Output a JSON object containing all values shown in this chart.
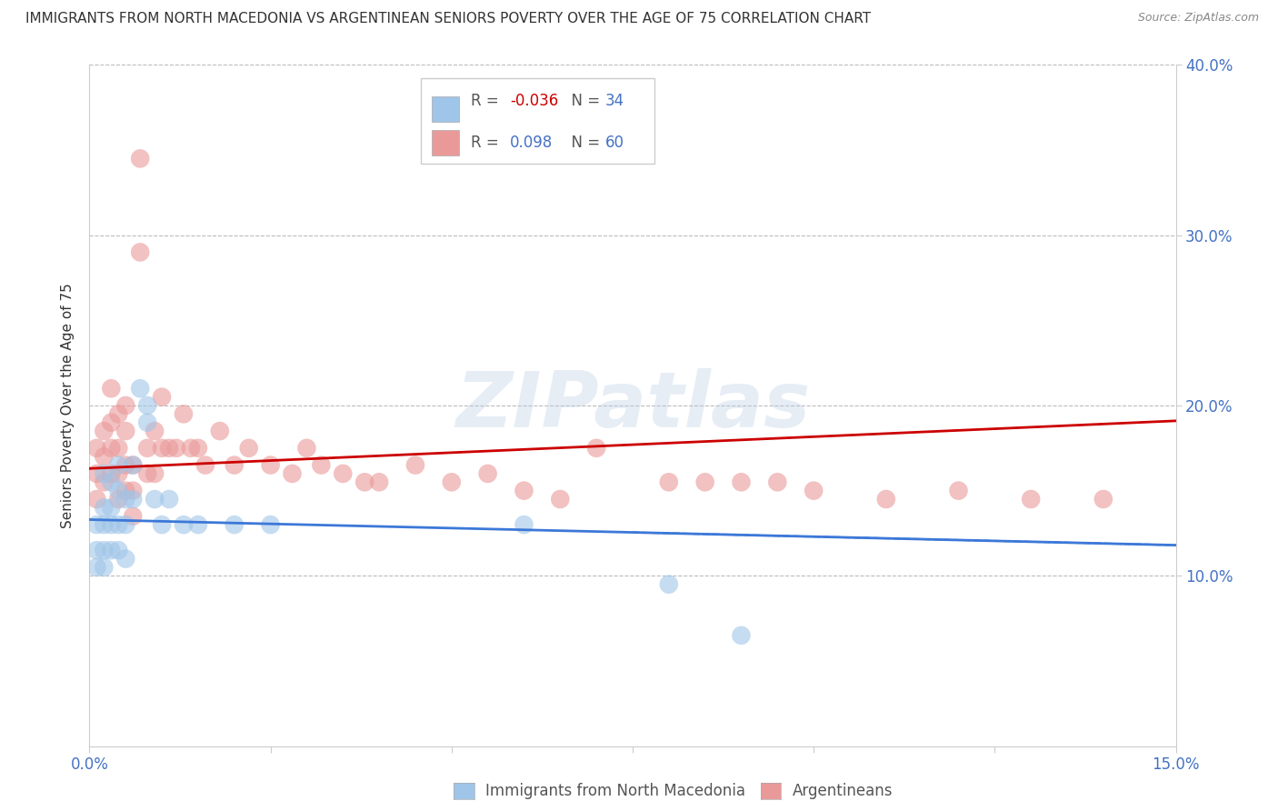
{
  "title": "IMMIGRANTS FROM NORTH MACEDONIA VS ARGENTINEAN SENIORS POVERTY OVER THE AGE OF 75 CORRELATION CHART",
  "source": "Source: ZipAtlas.com",
  "ylabel": "Seniors Poverty Over the Age of 75",
  "xlim": [
    0.0,
    0.15
  ],
  "ylim": [
    0.0,
    0.4
  ],
  "legend_r1": "-0.036",
  "legend_n1": "34",
  "legend_r2": "0.098",
  "legend_n2": "60",
  "blue_color": "#9fc5e8",
  "pink_color": "#ea9999",
  "blue_line_color": "#3c78d8",
  "pink_line_color": "#cc0000",
  "watermark_color": "#b8cce4",
  "blue_scatter_x": [
    0.001,
    0.001,
    0.001,
    0.002,
    0.002,
    0.002,
    0.002,
    0.002,
    0.003,
    0.003,
    0.003,
    0.003,
    0.004,
    0.004,
    0.004,
    0.004,
    0.005,
    0.005,
    0.005,
    0.006,
    0.006,
    0.007,
    0.008,
    0.008,
    0.009,
    0.01,
    0.011,
    0.013,
    0.015,
    0.02,
    0.025,
    0.06,
    0.08,
    0.09
  ],
  "blue_scatter_y": [
    0.13,
    0.115,
    0.105,
    0.16,
    0.14,
    0.13,
    0.115,
    0.105,
    0.155,
    0.14,
    0.13,
    0.115,
    0.165,
    0.15,
    0.13,
    0.115,
    0.145,
    0.13,
    0.11,
    0.165,
    0.145,
    0.21,
    0.2,
    0.19,
    0.145,
    0.13,
    0.145,
    0.13,
    0.13,
    0.13,
    0.13,
    0.13,
    0.095,
    0.065
  ],
  "pink_scatter_x": [
    0.001,
    0.001,
    0.001,
    0.002,
    0.002,
    0.002,
    0.003,
    0.003,
    0.003,
    0.003,
    0.004,
    0.004,
    0.004,
    0.004,
    0.005,
    0.005,
    0.005,
    0.005,
    0.006,
    0.006,
    0.006,
    0.007,
    0.007,
    0.008,
    0.008,
    0.009,
    0.009,
    0.01,
    0.01,
    0.011,
    0.012,
    0.013,
    0.014,
    0.015,
    0.016,
    0.018,
    0.02,
    0.022,
    0.025,
    0.028,
    0.03,
    0.032,
    0.035,
    0.038,
    0.04,
    0.045,
    0.05,
    0.055,
    0.06,
    0.065,
    0.07,
    0.08,
    0.085,
    0.09,
    0.095,
    0.1,
    0.11,
    0.12,
    0.13,
    0.14
  ],
  "pink_scatter_y": [
    0.175,
    0.16,
    0.145,
    0.185,
    0.17,
    0.155,
    0.21,
    0.19,
    0.175,
    0.16,
    0.195,
    0.175,
    0.16,
    0.145,
    0.2,
    0.185,
    0.165,
    0.15,
    0.165,
    0.15,
    0.135,
    0.345,
    0.29,
    0.175,
    0.16,
    0.185,
    0.16,
    0.205,
    0.175,
    0.175,
    0.175,
    0.195,
    0.175,
    0.175,
    0.165,
    0.185,
    0.165,
    0.175,
    0.165,
    0.16,
    0.175,
    0.165,
    0.16,
    0.155,
    0.155,
    0.165,
    0.155,
    0.16,
    0.15,
    0.145,
    0.175,
    0.155,
    0.155,
    0.155,
    0.155,
    0.15,
    0.145,
    0.15,
    0.145,
    0.145
  ],
  "blue_line_x0": 0.0,
  "blue_line_x1": 0.15,
  "blue_line_y0": 0.133,
  "blue_line_y1": 0.118,
  "pink_line_x0": 0.0,
  "pink_line_x1": 0.15,
  "pink_line_y0": 0.163,
  "pink_line_y1": 0.191
}
